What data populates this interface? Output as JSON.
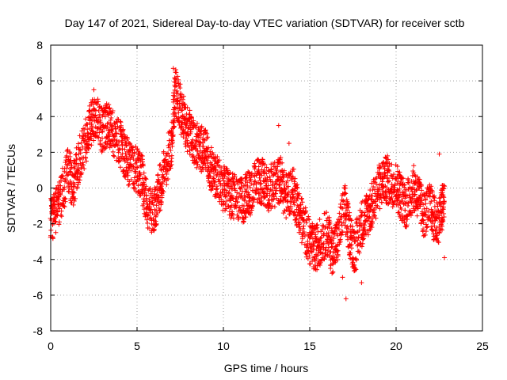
{
  "chart_data": {
    "type": "scatter",
    "title": "Day 147 of 2021, Sidereal Day-to-day VTEC variation (SDTVAR) for receiver sctb",
    "xlabel": "GPS time / hours",
    "ylabel": "SDTVAR / TECUs",
    "xlim": [
      0,
      25
    ],
    "ylim": [
      -8,
      8
    ],
    "xticks": [
      0,
      5,
      10,
      15,
      20,
      25
    ],
    "yticks": [
      -8,
      -6,
      -4,
      -2,
      0,
      2,
      4,
      6,
      8
    ],
    "xtick_labels": [
      "0",
      "5",
      "10",
      "15",
      "20",
      "25"
    ],
    "ytick_labels": [
      "-8",
      "-6",
      "-4",
      "-2",
      "0",
      "2",
      "4",
      "6",
      "8"
    ],
    "grid": true,
    "marker": "+",
    "color": "#ff0000",
    "series_trend": {
      "name": "SDTVAR",
      "x": [
        0.0,
        0.3,
        0.6,
        1.0,
        1.3,
        1.6,
        2.0,
        2.3,
        2.6,
        3.0,
        3.3,
        3.6,
        4.0,
        4.3,
        4.6,
        5.0,
        5.3,
        5.6,
        6.0,
        6.3,
        6.6,
        7.0,
        7.2,
        7.5,
        7.8,
        8.1,
        8.4,
        8.7,
        9.0,
        9.3,
        9.6,
        10.0,
        10.3,
        10.6,
        11.0,
        11.3,
        11.6,
        12.0,
        12.3,
        12.6,
        13.0,
        13.3,
        13.6,
        14.0,
        14.3,
        14.6,
        15.0,
        15.3,
        15.6,
        16.0,
        16.3,
        16.6,
        17.0,
        17.3,
        17.6,
        18.0,
        18.3,
        18.6,
        19.0,
        19.3,
        19.6,
        20.0,
        20.3,
        20.6,
        21.0,
        21.3,
        21.6,
        22.0,
        22.3,
        22.6,
        22.8
      ],
      "y": [
        -1.8,
        -1.2,
        -0.5,
        1.0,
        0.0,
        1.5,
        2.5,
        3.5,
        4.0,
        3.2,
        3.5,
        3.0,
        2.5,
        1.8,
        1.2,
        1.0,
        0.5,
        -1.0,
        -1.5,
        0.0,
        1.0,
        2.5,
        5.5,
        4.5,
        3.5,
        3.0,
        2.5,
        2.2,
        2.0,
        1.0,
        0.5,
        0.0,
        -0.3,
        -0.5,
        -0.8,
        -0.5,
        -0.2,
        0.5,
        0.3,
        0.0,
        0.2,
        0.5,
        -0.5,
        0.0,
        -1.0,
        -2.0,
        -3.0,
        -3.5,
        -3.0,
        -2.5,
        -3.5,
        -3.0,
        -1.0,
        -2.5,
        -3.5,
        -2.0,
        -1.5,
        -1.0,
        0.0,
        0.5,
        0.3,
        0.2,
        -0.5,
        -1.0,
        0.0,
        -0.5,
        -1.5,
        -1.0,
        -2.0,
        -1.5,
        -0.5
      ]
    },
    "outliers": [
      {
        "x": 2.5,
        "y": 5.5
      },
      {
        "x": 7.1,
        "y": 6.7
      },
      {
        "x": 13.2,
        "y": 3.5
      },
      {
        "x": 13.8,
        "y": 2.5
      },
      {
        "x": 16.9,
        "y": -5.0
      },
      {
        "x": 17.1,
        "y": -6.2
      },
      {
        "x": 18.0,
        "y": -5.3
      },
      {
        "x": 19.5,
        "y": 1.8
      },
      {
        "x": 22.5,
        "y": 1.9
      },
      {
        "x": 22.8,
        "y": -3.9
      }
    ]
  }
}
